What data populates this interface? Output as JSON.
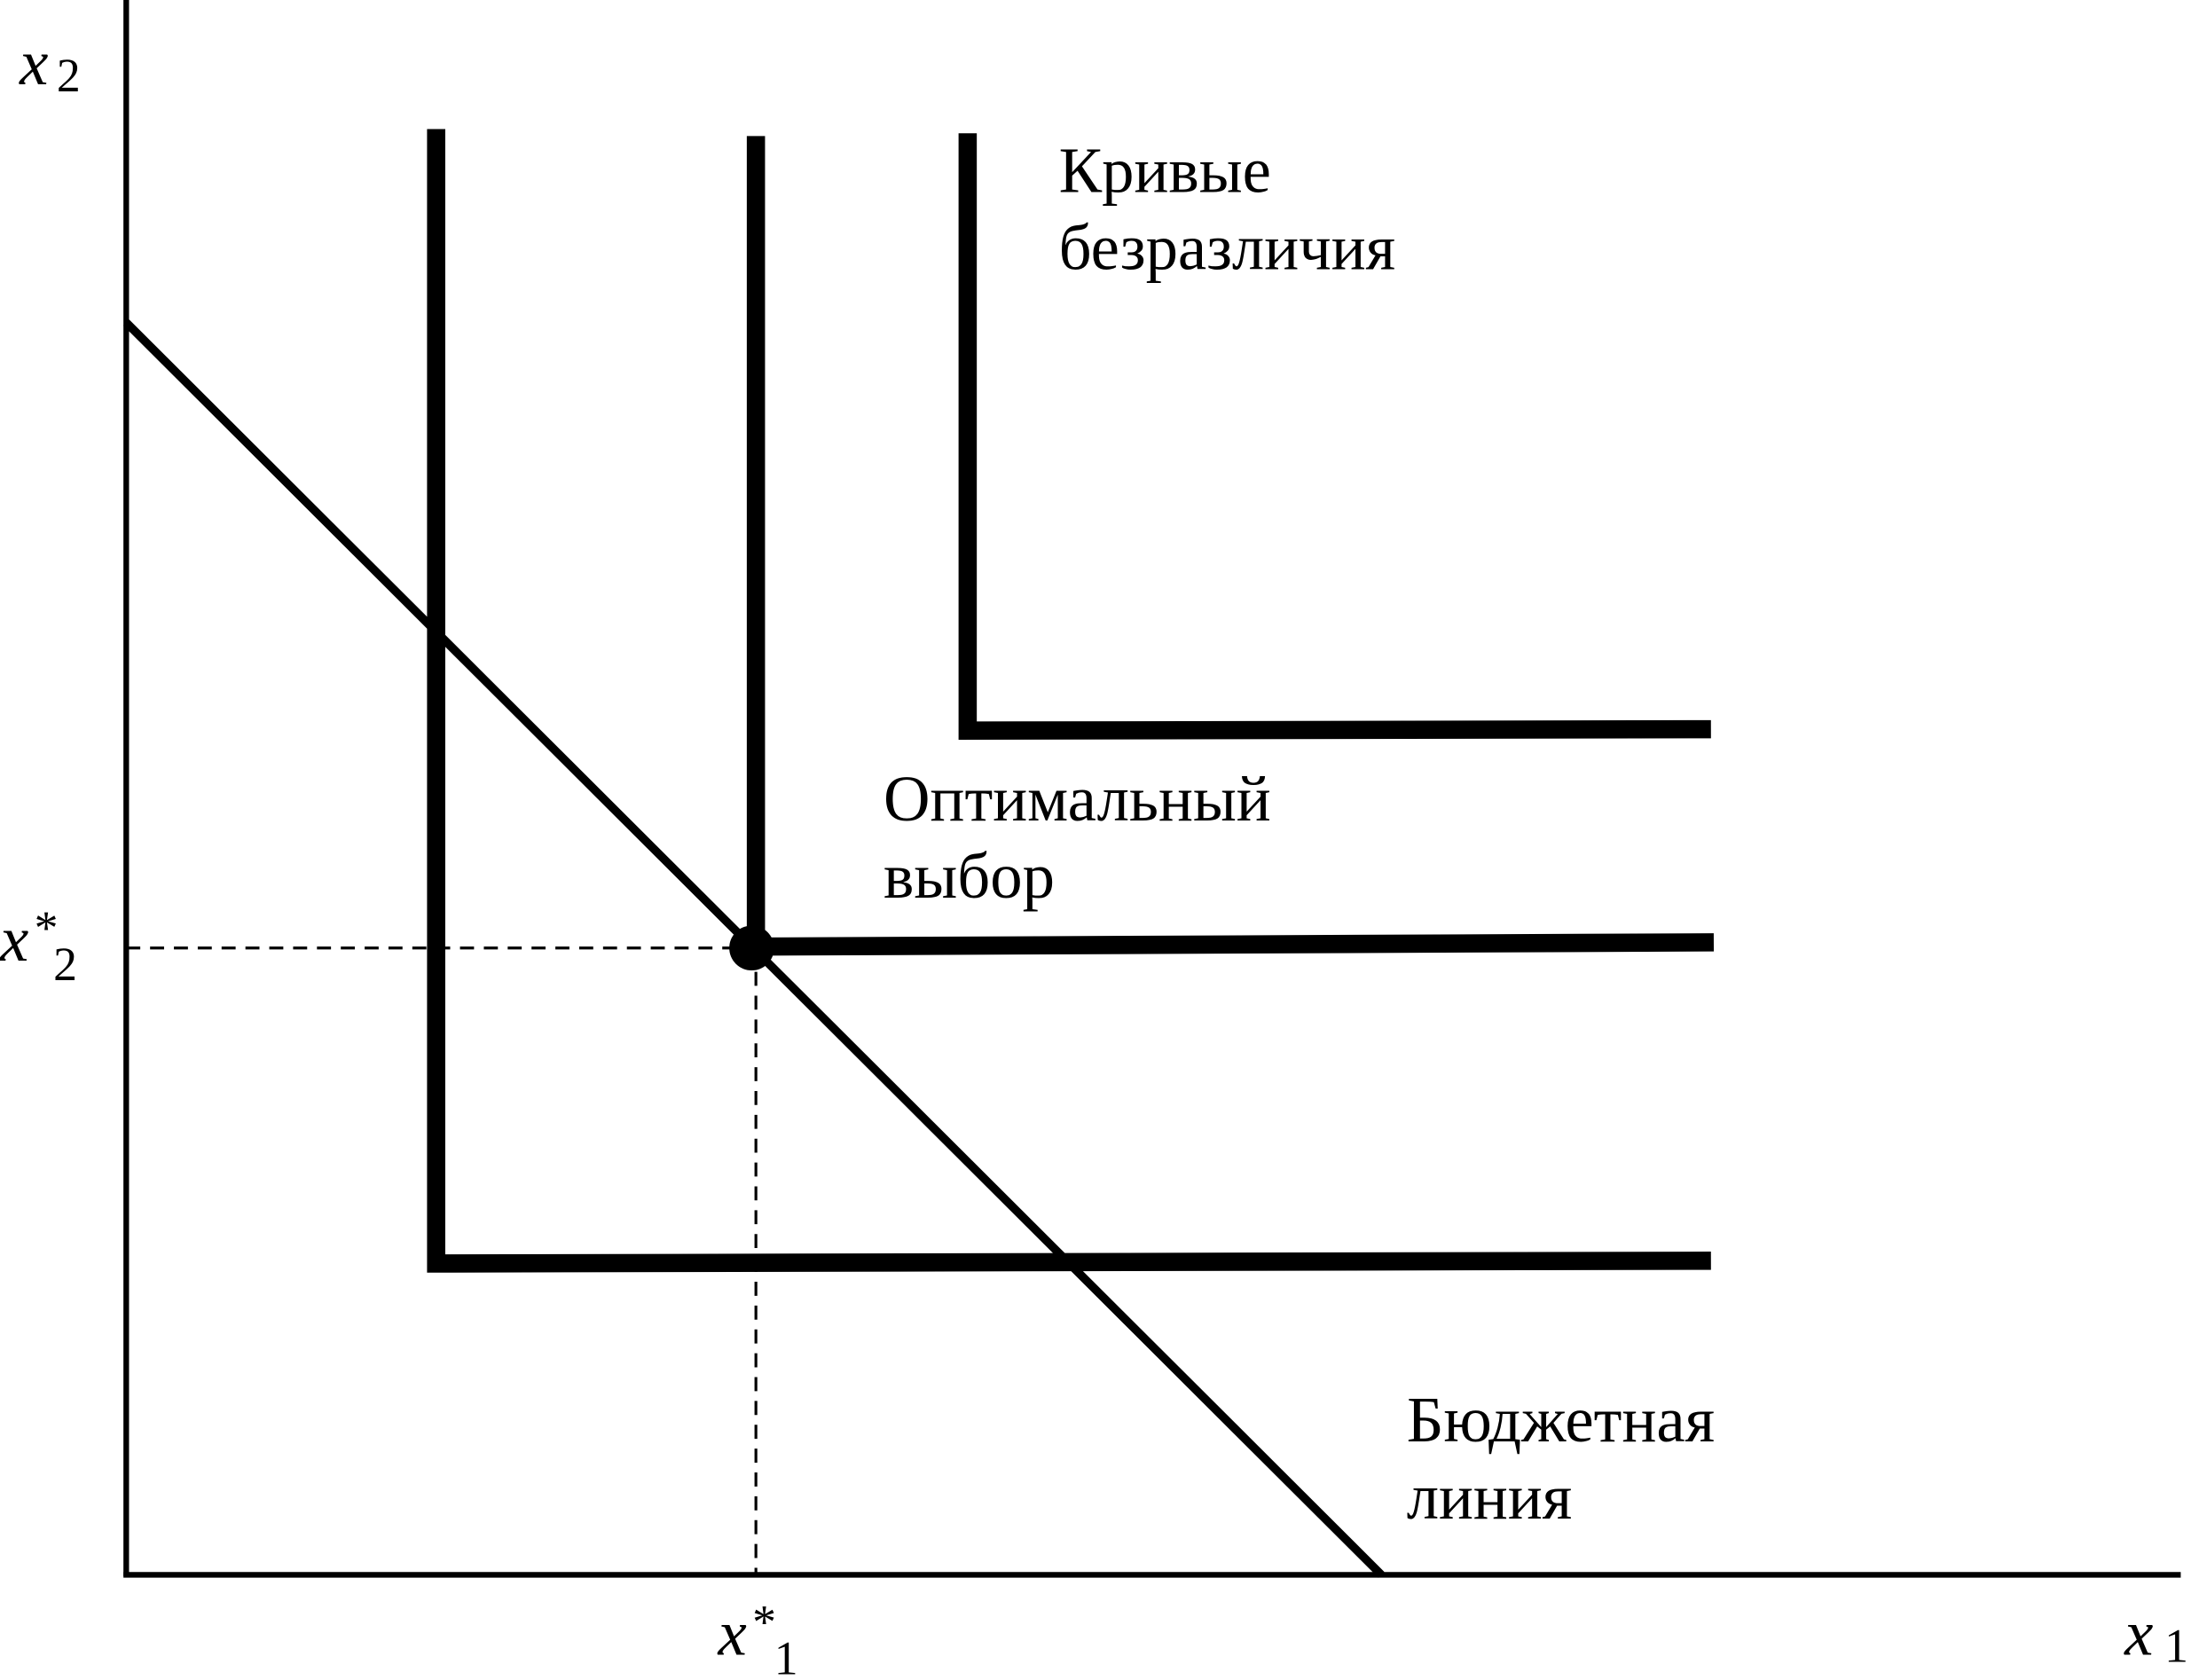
{
  "axes": {
    "y_label": {
      "base": "x",
      "sub": "2"
    },
    "x_label": {
      "base": "x",
      "sub": "1"
    },
    "y_optimum": {
      "base": "x",
      "sup": "*",
      "sub": "2"
    },
    "x_optimum": {
      "base": "x",
      "sup": "*",
      "sub": "1"
    }
  },
  "labels": {
    "indifference_curves": [
      "Кривые",
      "безразличия"
    ],
    "optimal_choice": [
      "Оптимальный",
      "выбор"
    ],
    "budget_line": [
      "Бюджетная",
      "линия"
    ]
  }
}
